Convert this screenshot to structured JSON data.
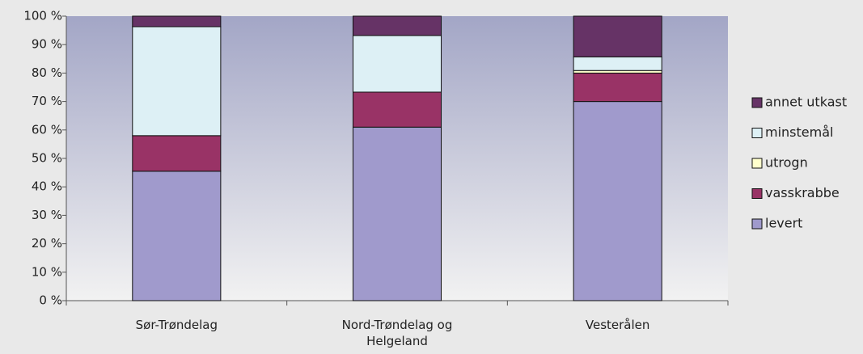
{
  "chart_data": {
    "type": "stacked_bar",
    "categories": [
      "Sør-Trøndelag",
      "Nord-Trøndelag og Helgeland",
      "Vesterålen"
    ],
    "series": [
      {
        "name": "levert",
        "color": "#a09acc",
        "values": [
          45.5,
          61,
          70
        ]
      },
      {
        "name": "vasskrabbe",
        "color": "#993366",
        "values": [
          12.5,
          12.3,
          10
        ]
      },
      {
        "name": "utrogn",
        "color": "#ffffcc",
        "values": [
          0,
          0,
          0.9
        ]
      },
      {
        "name": "minstemål",
        "color": "#ddf0f5",
        "values": [
          38.3,
          19.9,
          4.8
        ]
      },
      {
        "name": "annet utkast",
        "color": "#663366",
        "values": [
          3.7,
          6.8,
          14.3
        ]
      }
    ],
    "ylim": [
      0,
      100
    ],
    "yticks": [
      {
        "value": 0,
        "label": "0 %"
      },
      {
        "value": 10,
        "label": "10 %"
      },
      {
        "value": 20,
        "label": "20 %"
      },
      {
        "value": 30,
        "label": "30 %"
      },
      {
        "value": 40,
        "label": "40 %"
      },
      {
        "value": 50,
        "label": "50 %"
      },
      {
        "value": 60,
        "label": "60 %"
      },
      {
        "value": 70,
        "label": "70 %"
      },
      {
        "value": 80,
        "label": "80 %"
      },
      {
        "value": 90,
        "label": "90 %"
      },
      {
        "value": 100,
        "label": "100 %"
      }
    ],
    "legend": "right"
  }
}
